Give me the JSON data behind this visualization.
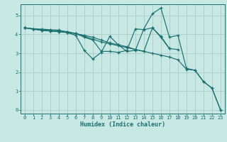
{
  "xlabel": "Humidex (Indice chaleur)",
  "bg_color": "#c8e8e4",
  "line_color": "#1a7070",
  "grid_color": "#a8ccc8",
  "xlim": [
    -0.5,
    23.5
  ],
  "ylim": [
    -0.2,
    5.6
  ],
  "xticks": [
    0,
    1,
    2,
    3,
    4,
    5,
    6,
    7,
    8,
    9,
    10,
    11,
    12,
    13,
    14,
    15,
    16,
    17,
    18,
    19,
    20,
    21,
    22,
    23
  ],
  "yticks": [
    0,
    1,
    2,
    3,
    4,
    5
  ],
  "lines": [
    {
      "x": [
        0,
        1,
        2,
        3,
        4,
        5,
        6,
        7,
        8,
        9,
        10,
        11,
        12,
        13,
        14,
        15,
        16,
        17,
        18,
        19,
        20,
        21,
        22,
        23
      ],
      "y": [
        4.35,
        4.3,
        4.25,
        4.2,
        4.2,
        4.15,
        4.05,
        3.95,
        3.85,
        3.7,
        3.55,
        3.45,
        3.35,
        3.2,
        3.1,
        3.0,
        2.9,
        2.8,
        2.65,
        2.15,
        2.1,
        1.5,
        1.15,
        0.0
      ]
    },
    {
      "x": [
        0,
        1,
        2,
        3,
        4,
        5,
        6,
        7,
        8,
        9,
        10,
        11,
        12,
        13,
        14,
        15,
        16,
        17,
        18,
        19,
        20,
        21,
        22,
        23
      ],
      "y": [
        4.35,
        4.3,
        4.28,
        4.25,
        4.23,
        4.1,
        3.95,
        3.15,
        2.7,
        3.05,
        3.9,
        3.45,
        3.1,
        3.15,
        4.3,
        5.1,
        5.4,
        3.85,
        3.95,
        2.2,
        2.1,
        1.5,
        1.15,
        0.0
      ]
    },
    {
      "x": [
        0,
        1,
        2,
        3,
        4,
        5,
        6,
        7,
        8,
        9,
        10,
        11,
        12,
        13,
        14,
        15,
        16,
        17,
        18
      ],
      "y": [
        4.35,
        4.28,
        4.22,
        4.18,
        4.15,
        4.1,
        4.05,
        3.9,
        3.75,
        3.6,
        3.5,
        3.4,
        3.3,
        3.2,
        3.1,
        4.35,
        3.85,
        3.25,
        3.2
      ]
    },
    {
      "x": [
        0,
        1,
        2,
        3,
        4,
        5,
        6,
        7,
        8,
        9,
        10,
        11,
        12,
        13,
        14,
        15,
        16,
        17
      ],
      "y": [
        4.35,
        4.28,
        4.22,
        4.18,
        4.15,
        4.1,
        4.05,
        3.85,
        3.7,
        3.1,
        3.1,
        3.05,
        3.15,
        4.3,
        4.25,
        4.35,
        3.9,
        3.25
      ]
    }
  ]
}
